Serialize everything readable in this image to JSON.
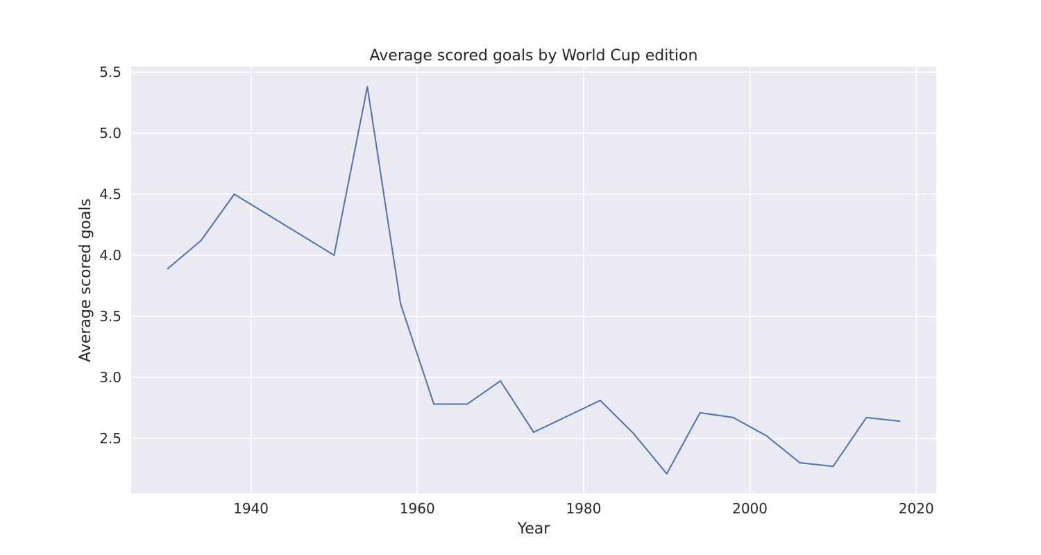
{
  "chart_data": {
    "type": "line",
    "title": "Average scored goals by World Cup edition",
    "xlabel": "Year",
    "ylabel": "Average scored goals",
    "xlim": [
      1925.6,
      2022.4
    ],
    "ylim": [
      2.05,
      5.545
    ],
    "xticks": [
      1940,
      1960,
      1980,
      2000,
      2020
    ],
    "yticks": [
      2.5,
      3.0,
      3.5,
      4.0,
      4.5,
      5.0,
      5.5
    ],
    "ytick_labels": [
      "2.5",
      "3.0",
      "3.5",
      "4.0",
      "4.5",
      "5.0",
      "5.5"
    ],
    "grid": true,
    "background": "#eaeaf2",
    "grid_color": "#ffffff",
    "line_color": "#4c72b0",
    "series": [
      {
        "x": [
          1930,
          1934,
          1938,
          1950,
          1954,
          1958,
          1962,
          1966,
          1970,
          1974,
          1978,
          1982,
          1986,
          1990,
          1994,
          1998,
          2002,
          2006,
          2010,
          2014,
          2018
        ],
        "values": [
          3.89,
          4.12,
          4.5,
          4.0,
          5.38,
          3.6,
          2.78,
          2.78,
          2.97,
          2.55,
          2.68,
          2.81,
          2.54,
          2.21,
          2.71,
          2.67,
          2.52,
          2.3,
          2.27,
          2.67,
          2.64
        ]
      }
    ]
  }
}
